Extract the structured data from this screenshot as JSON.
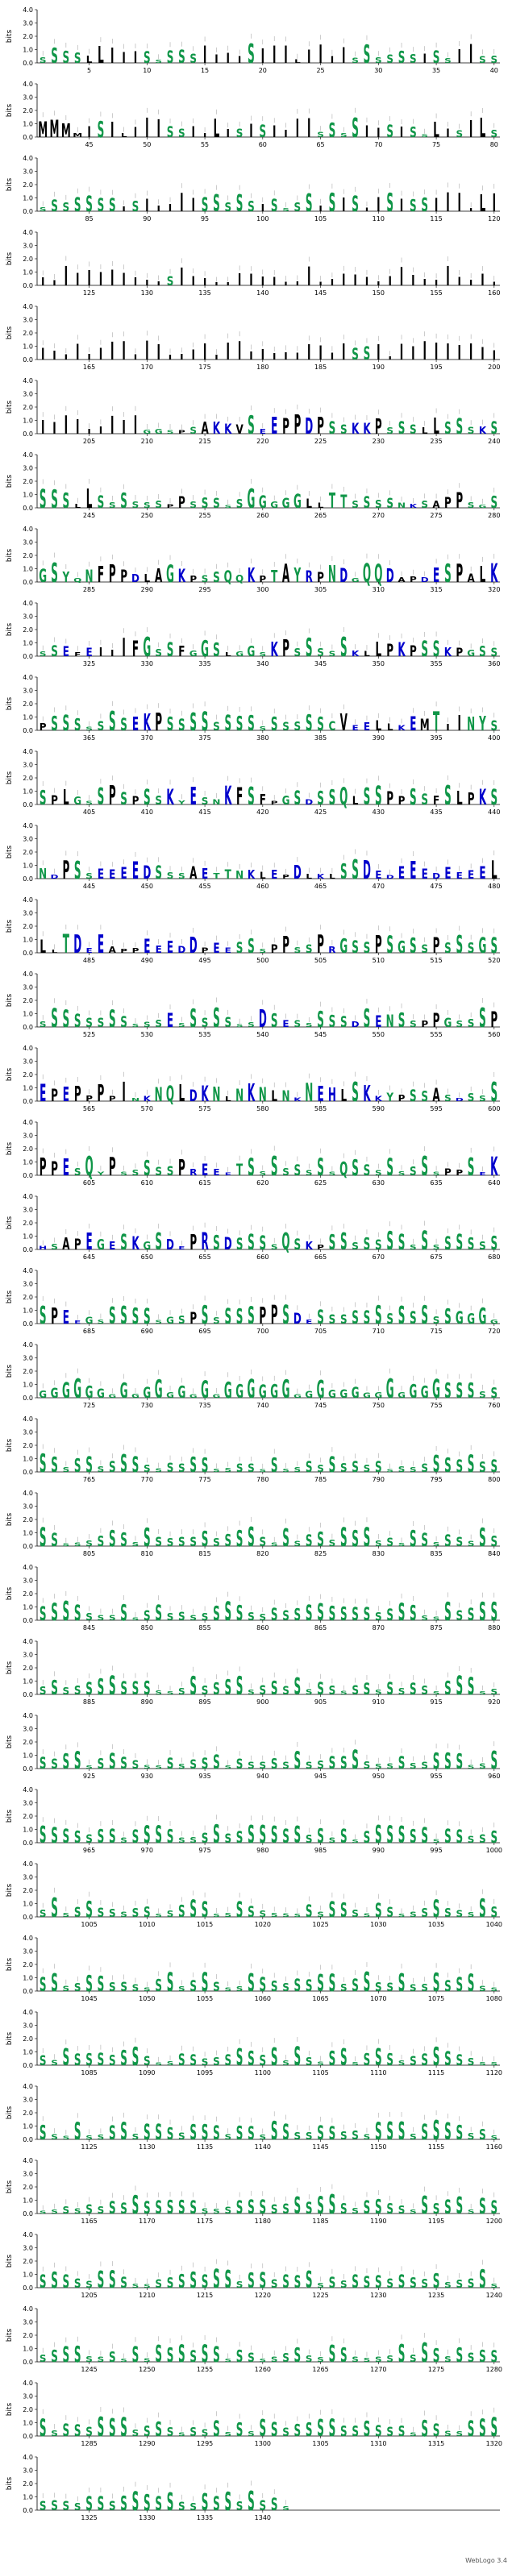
{
  "chart_data": {
    "type": "sequence_logo",
    "ylabel": "bits",
    "ylim": [
      0,
      4
    ],
    "y_ticks": [
      0.0,
      1.0,
      2.0,
      3.0,
      4.0
    ],
    "x_tick_step": 5,
    "positions_per_row": 40,
    "total_positions": 1342,
    "colors": {
      "hydrophobic": "#000000",
      "polar": "#109648",
      "basic": "#0000cc",
      "acidic": "#0000cc",
      "neutral": "#6600aa",
      "other": "#000000"
    },
    "sequence": "SSSSLLIIISSSSSIIIISIIILIIIISSSSSSISSIISSMMMMISILIIISSIILISISIIIISSSSIISISSLISILSSSSSSSSISIIIIISSSSSISSSSISISIISISSIIIILIIIIIIIIIIIISIIIIIIIIIIIIIIIIIIIIIIIIIIIIIIIIIIIIIIIIIIIIIIIIIIIIIIISSIIIIIIIIIIIIIIIIIIIIGGSPSAKKVSEEPPDPSSKKPSSSLLSSSKSSSSLLSSSSSSPPSSSSSGGGGGLLTTSSSSNKSAPPSGSGSYQNFPPDLAGKPSSQQKPTAYRPNDGQQDAPDESPALKSSEFEIIIFGSSFGGSLGGSKPSSSSSKLLPKPSSKPGSSPSSSSSSSEKPSSSSSSSSSSSSSSCVEELLKEMTIINYSSPLGSSPSPSSKYESNKFSFPGSDSSQLSSPPSSFSLPKSNDPSSEEEEDSSSAETTNKLEPDLKLSSDEDEEEDEEEELLLTDEEAPPEEEDDPEESSSPPSSPRGSSPSGSSPSSSGSSSSSSSSSSSSESSSSSSSDSESSSSSDSENSSPPGSSSPEPEPPPPINKNQLDKNLNKNLNKNEHLSKKYPSSASDSSSPPESQYPSSSSSPREEETSSSSSSSSQSSSSSSSSPPSEKHSAPEGESKGSDEPRSDSSSSQSKPSSSSSSSSSSSSSSSSPEEGSSSSSSGSPSSSSSPPSDESSSSSSSSSSSSGGGGGGGGGGGGGGGGGGGGGGGGGGGGGGGGGGGGGGG"
  },
  "footer_text": "WebLogo 3.4"
}
